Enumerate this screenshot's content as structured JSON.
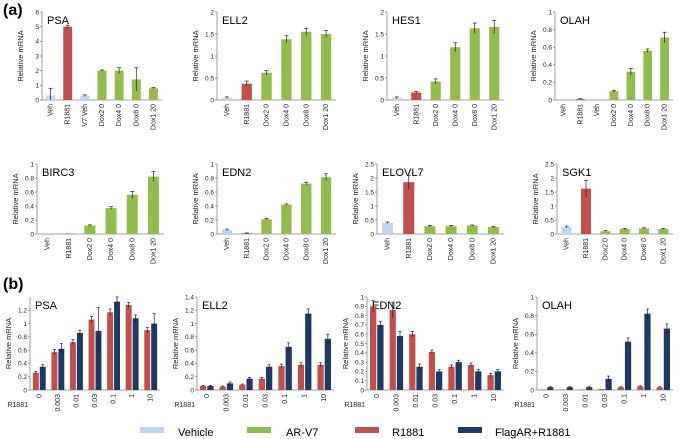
{
  "panel_labels": [
    "(a)",
    "(b)"
  ],
  "colors": {
    "Vehicle": "#bfd7ee",
    "AR-V7": "#92bc4e",
    "R1881": "#c0504d",
    "FlagAR+R1881": "#1f3864"
  },
  "legend": [
    "Vehicle",
    "AR-V7",
    "R1881",
    "FlagAR+R1881"
  ],
  "chart_data": [
    {
      "id": "a-psa",
      "type": "bar",
      "title": "PSA",
      "ylabel": "Relative mRNA",
      "ylim": [
        0,
        6
      ],
      "yticks": [
        0,
        1,
        2,
        3,
        4,
        5,
        6
      ],
      "categories": [
        "Veh",
        "R1881",
        "V7 Veh",
        "Dox2 0",
        "Dox4 0",
        "Dox8 0",
        "Dox1 20"
      ],
      "values": [
        0.3,
        5.0,
        0.3,
        2.0,
        2.0,
        1.4,
        0.8
      ],
      "errors": [
        0.5,
        0.1,
        0.05,
        0.05,
        0.2,
        0.8,
        0.05
      ],
      "groups": [
        "Vehicle",
        "R1881",
        "Vehicle",
        "AR-V7",
        "AR-V7",
        "AR-V7",
        "AR-V7"
      ]
    },
    {
      "id": "a-ell2",
      "type": "bar",
      "title": "ELL2",
      "ylabel": "Relative mRNA",
      "ylim": [
        0,
        2
      ],
      "yticks": [
        0,
        0.5,
        1,
        1.5,
        2
      ],
      "categories": [
        "Veh",
        "R1881",
        "Dox2 0",
        "Dox4 0",
        "Dox8 0",
        "Dox1 20"
      ],
      "values": [
        0.05,
        0.37,
        0.62,
        1.38,
        1.55,
        1.5
      ],
      "errors": [
        0.02,
        0.06,
        0.05,
        0.08,
        0.08,
        0.08
      ],
      "groups": [
        "Vehicle",
        "R1881",
        "AR-V7",
        "AR-V7",
        "AR-V7",
        "AR-V7"
      ]
    },
    {
      "id": "a-hes1",
      "type": "bar",
      "title": "HES1",
      "ylabel": "Relative mRNA",
      "ylim": [
        0,
        2
      ],
      "yticks": [
        0,
        0.5,
        1,
        1.5,
        2
      ],
      "categories": [
        "Veh",
        "R1881",
        "Dox2 0",
        "Dox4 0",
        "Dox8 0",
        "Dox1 20"
      ],
      "values": [
        0.05,
        0.17,
        0.42,
        1.2,
        1.63,
        1.66
      ],
      "errors": [
        0.02,
        0.02,
        0.06,
        0.1,
        0.12,
        0.15
      ],
      "groups": [
        "Vehicle",
        "R1881",
        "AR-V7",
        "AR-V7",
        "AR-V7",
        "AR-V7"
      ]
    },
    {
      "id": "a-olah",
      "type": "bar",
      "title": "OLAH",
      "ylabel": "Relative mRNA",
      "ylim": [
        0,
        1
      ],
      "yticks": [
        0,
        0.2,
        0.4,
        0.6,
        0.8,
        1
      ],
      "categories": [
        "Veh",
        "R1881",
        "Veh",
        "Dox2 0",
        "Dox4 0",
        "Dox8 0",
        "Dox1 20"
      ],
      "values": [
        0.0,
        0.01,
        0.0,
        0.1,
        0.32,
        0.56,
        0.71
      ],
      "errors": [
        0,
        0.005,
        0,
        0.01,
        0.04,
        0.02,
        0.06
      ],
      "groups": [
        "Vehicle",
        "R1881",
        "Vehicle",
        "AR-V7",
        "AR-V7",
        "AR-V7",
        "AR-V7"
      ]
    },
    {
      "id": "a-birc3",
      "type": "bar",
      "title": "BIRC3",
      "ylabel": "Relative mRNA",
      "ylim": [
        0,
        1
      ],
      "yticks": [
        0,
        0.2,
        0.4,
        0.6,
        0.8,
        1
      ],
      "categories": [
        "Veh",
        "R1881",
        "Dox2 0",
        "Dox4 0",
        "Dox8 0",
        "Dox1 20"
      ],
      "values": [
        0.0,
        0.005,
        0.12,
        0.37,
        0.56,
        0.82
      ],
      "errors": [
        0,
        0,
        0.01,
        0.02,
        0.05,
        0.07
      ],
      "groups": [
        "Vehicle",
        "R1881",
        "AR-V7",
        "AR-V7",
        "AR-V7",
        "AR-V7"
      ]
    },
    {
      "id": "a-edn2",
      "type": "bar",
      "title": "EDN2",
      "ylabel": "Relative mRNA",
      "ylim": [
        0,
        1
      ],
      "yticks": [
        0,
        0.2,
        0.4,
        0.6,
        0.8,
        1
      ],
      "categories": [
        "Veh",
        "R1881",
        "Dox2 0",
        "Dox4 0",
        "Dox8 0",
        "Dox1 20"
      ],
      "values": [
        0.06,
        0.01,
        0.21,
        0.42,
        0.72,
        0.81
      ],
      "errors": [
        0.01,
        0.005,
        0.01,
        0.01,
        0.02,
        0.05
      ],
      "groups": [
        "Vehicle",
        "R1881",
        "AR-V7",
        "AR-V7",
        "AR-V7",
        "AR-V7"
      ]
    },
    {
      "id": "a-elovl7",
      "type": "bar",
      "title": "ELOVL7",
      "ylabel": "Relative mRNA",
      "ylim": [
        0,
        2.5
      ],
      "yticks": [
        0,
        0.5,
        1,
        1.5,
        2,
        2.5
      ],
      "categories": [
        "Veh",
        "R1881",
        "Dox2 0",
        "Dox4 0",
        "Dox8 0",
        "Dox1 20"
      ],
      "values": [
        0.4,
        1.85,
        0.28,
        0.28,
        0.3,
        0.25
      ],
      "errors": [
        0.03,
        0.25,
        0.03,
        0.02,
        0.02,
        0.02
      ],
      "groups": [
        "Vehicle",
        "R1881",
        "AR-V7",
        "AR-V7",
        "AR-V7",
        "AR-V7"
      ]
    },
    {
      "id": "a-sgk1",
      "type": "bar",
      "title": "SGK1",
      "ylabel": "Relative mRNA",
      "ylim": [
        0,
        2.5
      ],
      "yticks": [
        0,
        0.5,
        1,
        1.5,
        2,
        2.5
      ],
      "categories": [
        "Veh",
        "R1881",
        "Dox2 0",
        "Dox4 0",
        "Dox8 0",
        "Dox1 20"
      ],
      "values": [
        0.25,
        1.62,
        0.1,
        0.18,
        0.2,
        0.18
      ],
      "errors": [
        0.03,
        0.3,
        0.02,
        0.02,
        0.02,
        0.02
      ],
      "groups": [
        "Vehicle",
        "R1881",
        "AR-V7",
        "AR-V7",
        "AR-V7",
        "AR-V7"
      ]
    },
    {
      "id": "b-psa",
      "type": "bar",
      "title": "PSA",
      "ylabel": "Relative mRNA",
      "xlabel": "R1881",
      "ylim": [
        0,
        1.4
      ],
      "yticks": [
        0,
        0.2,
        0.4,
        0.6,
        0.8,
        1,
        1.2
      ],
      "categories": [
        "0",
        "0.003",
        "0.01",
        "0.03",
        "0.1",
        "1",
        "10"
      ],
      "series": [
        {
          "name": "R1881",
          "values": [
            0.26,
            0.57,
            0.72,
            1.06,
            1.17,
            1.28,
            0.9
          ],
          "errors": [
            0.02,
            0.04,
            0.04,
            0.05,
            0.05,
            0.04,
            0.04
          ]
        },
        {
          "name": "FlagAR+R1881",
          "values": [
            0.35,
            0.62,
            0.86,
            0.89,
            1.33,
            1.08,
            1.0
          ],
          "errors": [
            0.03,
            0.08,
            0.04,
            0.35,
            0.07,
            0.05,
            0.15
          ]
        }
      ]
    },
    {
      "id": "b-ell2",
      "type": "bar",
      "title": "ELL2",
      "ylabel": "Relative mRNA",
      "xlabel": "R1881",
      "ylim": [
        0,
        1.4
      ],
      "yticks": [
        0,
        0.2,
        0.4,
        0.6,
        0.8,
        1,
        1.2,
        1.4
      ],
      "categories": [
        "0",
        "0.003",
        "0.01",
        "0.03",
        "0.1",
        "1",
        "10"
      ],
      "series": [
        {
          "name": "R1881",
          "values": [
            0.06,
            0.05,
            0.08,
            0.17,
            0.36,
            0.38,
            0.38
          ],
          "errors": [
            0.01,
            0.01,
            0.01,
            0.02,
            0.03,
            0.03,
            0.03
          ]
        },
        {
          "name": "FlagAR+R1881",
          "values": [
            0.06,
            0.1,
            0.17,
            0.35,
            0.65,
            1.15,
            0.77
          ],
          "errors": [
            0.01,
            0.02,
            0.02,
            0.03,
            0.06,
            0.07,
            0.07
          ]
        }
      ]
    },
    {
      "id": "b-edn2",
      "type": "bar",
      "title": "EDN2",
      "ylabel": "Relative mRNA",
      "xlabel": "R1881",
      "ylim": [
        0,
        1
      ],
      "yticks": [
        0,
        0.1,
        0.2,
        0.3,
        0.4,
        0.5,
        0.6,
        0.7,
        0.8,
        0.9,
        1
      ],
      "categories": [
        "0",
        "0.003",
        "0.01",
        "0.03",
        "0.1",
        "1",
        "10"
      ],
      "series": [
        {
          "name": "R1881",
          "values": [
            0.9,
            0.86,
            0.6,
            0.41,
            0.25,
            0.27,
            0.16
          ],
          "errors": [
            0.06,
            0.08,
            0.03,
            0.02,
            0.02,
            0.02,
            0.02
          ]
        },
        {
          "name": "FlagAR+R1881",
          "values": [
            0.7,
            0.58,
            0.25,
            0.2,
            0.3,
            0.2,
            0.2
          ],
          "errors": [
            0.04,
            0.05,
            0.03,
            0.02,
            0.02,
            0.02,
            0.02
          ]
        }
      ]
    },
    {
      "id": "b-olah",
      "type": "bar",
      "title": "OLAH",
      "ylabel": "Relative mRNA",
      "xlabel": "R1881",
      "ylim": [
        0,
        1
      ],
      "yticks": [
        0,
        0.2,
        0.4,
        0.6,
        0.8,
        1
      ],
      "categories": [
        "0",
        "0.003",
        "0.01",
        "0.03",
        "0.1",
        "1",
        "10"
      ],
      "series": [
        {
          "name": "R1881",
          "values": [
            0.005,
            0.005,
            0.005,
            0.01,
            0.03,
            0.04,
            0.03
          ],
          "errors": [
            0,
            0,
            0,
            0,
            0.005,
            0.005,
            0.005
          ]
        },
        {
          "name": "FlagAR+R1881",
          "values": [
            0.03,
            0.03,
            0.03,
            0.12,
            0.52,
            0.82,
            0.66
          ],
          "errors": [
            0.005,
            0.005,
            0.005,
            0.03,
            0.04,
            0.05,
            0.05
          ]
        }
      ]
    }
  ]
}
